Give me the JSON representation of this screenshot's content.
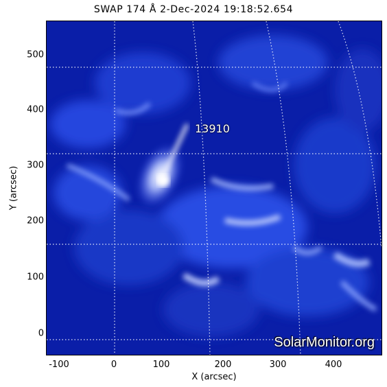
{
  "title": "SWAP 174 Å  2-Dec-2024 19:18:52.654",
  "active_region": "13910",
  "watermark": "SolarMonitor.org",
  "axes": {
    "xlabel": "X (arcsec)",
    "ylabel": "Y (arcsec)",
    "xticks": [
      "-100",
      "0",
      "100",
      "200",
      "300",
      "400"
    ],
    "yticks": [
      "0",
      "100",
      "200",
      "300",
      "400",
      "500"
    ]
  },
  "colors": {
    "base": "#0a1ea8",
    "bright": "#ffffff",
    "grid": "#ffffff"
  }
}
